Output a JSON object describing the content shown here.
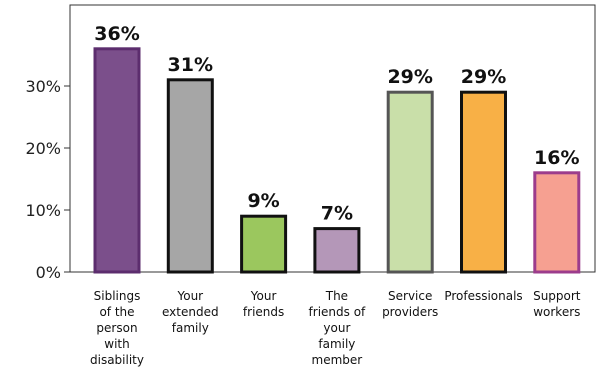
{
  "chart_data": {
    "type": "bar",
    "categories": [
      "Siblings of the person with disability",
      "Your extended family",
      "Your friends",
      "The friends of your family member",
      "Service providers",
      "Professionals",
      "Support workers"
    ],
    "category_lines": [
      [
        "Siblings",
        "of the",
        "person",
        "with",
        "disability"
      ],
      [
        "Your",
        "extended",
        "family"
      ],
      [
        "Your",
        "friends"
      ],
      [
        "The",
        "friends of",
        "your",
        "family",
        "member"
      ],
      [
        "Service",
        "providers"
      ],
      [
        "Professionals"
      ],
      [
        "Support",
        "workers"
      ]
    ],
    "values": [
      36,
      31,
      9,
      7,
      29,
      29,
      16
    ],
    "data_labels": [
      "36%",
      "31%",
      "9%",
      "7%",
      "29%",
      "29%",
      "16%"
    ],
    "bar_fill_colors": [
      "#7b4f8b",
      "#a6a6a6",
      "#9bc75e",
      "#b497b8",
      "#c9dfa9",
      "#f8b046",
      "#f6a091"
    ],
    "bar_stroke_colors": [
      "#5c2d6e",
      "#111111",
      "#111111",
      "#111111",
      "#555555",
      "#111111",
      "#9c3c8c"
    ],
    "ylim": [
      0,
      40
    ],
    "yticks": [
      0,
      10,
      20,
      30
    ],
    "ytick_labels": [
      "0%",
      "10%",
      "20%",
      "30%"
    ],
    "title": "",
    "xlabel": "",
    "ylabel": "",
    "grid": false,
    "legend": "none"
  }
}
